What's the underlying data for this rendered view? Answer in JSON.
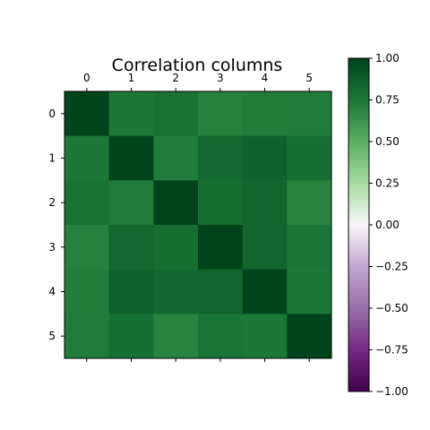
{
  "chart_data": {
    "type": "heatmap",
    "title": "Correlation columns",
    "x_labels": [
      "0",
      "1",
      "2",
      "3",
      "4",
      "5"
    ],
    "y_labels": [
      "0",
      "1",
      "2",
      "3",
      "4",
      "5"
    ],
    "values": [
      [
        1.0,
        0.75,
        0.78,
        0.71,
        0.72,
        0.73
      ],
      [
        0.75,
        1.0,
        0.73,
        0.82,
        0.86,
        0.79
      ],
      [
        0.78,
        0.73,
        1.0,
        0.8,
        0.83,
        0.7
      ],
      [
        0.71,
        0.82,
        0.8,
        1.0,
        0.84,
        0.76
      ],
      [
        0.72,
        0.86,
        0.83,
        0.84,
        1.0,
        0.75
      ],
      [
        0.73,
        0.79,
        0.7,
        0.76,
        0.75,
        1.0
      ]
    ],
    "colormap": "PRGn",
    "colorbar": {
      "range": [
        -1.0,
        1.0
      ],
      "ticks": [
        "1.00",
        "0.75",
        "0.50",
        "0.25",
        "0.00",
        "−0.25",
        "−0.50",
        "−0.75",
        "−1.00"
      ]
    },
    "x_ticks_position": "top",
    "grid": false
  }
}
